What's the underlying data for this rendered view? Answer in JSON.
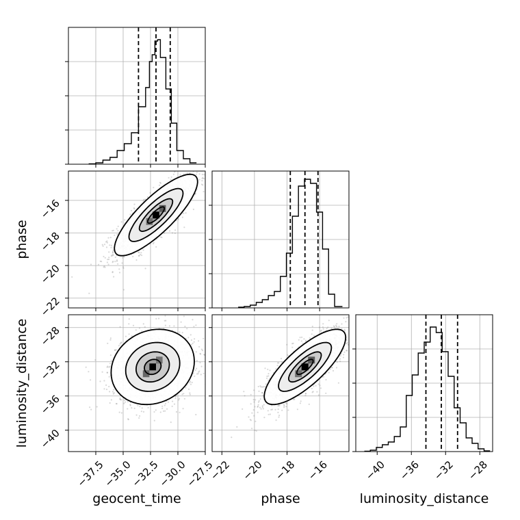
{
  "chart_data": {
    "type": "corner",
    "grid": true,
    "colors": {
      "line": "#000000",
      "grid": "#b0b0b0",
      "samples": "#7f7f7f",
      "quantile": "#000000"
    },
    "parameters": [
      {
        "name": "geocent_time",
        "label": "geocent_time",
        "range": [
          -40.0,
          -27.5
        ],
        "ticks": [
          -37.5,
          -35.0,
          -32.5,
          -30.0,
          -27.5
        ],
        "tick_labels": [
          "−37.5",
          "−35.0",
          "−32.5",
          "−30.0",
          "−27.5"
        ],
        "quantiles": [
          -33.6,
          -32.0,
          -30.7
        ]
      },
      {
        "name": "phase",
        "label": "phase",
        "range": [
          -22.6,
          -14.2
        ],
        "ticks": [
          -22,
          -20,
          -18,
          -16
        ],
        "tick_labels": [
          "−22",
          "−20",
          "−18",
          "−16"
        ],
        "quantiles": [
          -17.8,
          -16.9,
          -16.1
        ]
      },
      {
        "name": "luminosity_distance",
        "label": "luminosity_distance",
        "range": [
          -42.5,
          -26.5
        ],
        "ticks": [
          -40,
          -36,
          -32,
          -28
        ],
        "tick_labels": [
          "−40",
          "−36",
          "−32",
          "−28"
        ],
        "quantiles": [
          -34.3,
          -32.5,
          -30.6
        ]
      }
    ],
    "histograms": [
      {
        "param": "geocent_time",
        "edges": [
          -38.15,
          -37.5,
          -36.85,
          -36.2,
          -35.55,
          -34.9,
          -34.25,
          -33.6,
          -32.95,
          -32.6,
          -32.35,
          -32.1,
          -31.85,
          -31.6,
          -31.1,
          -30.6,
          -30.1,
          -29.5,
          -28.9,
          -28.3
        ],
        "counts": [
          0.003,
          0.01,
          0.03,
          0.05,
          0.1,
          0.15,
          0.23,
          0.42,
          0.56,
          0.75,
          0.8,
          0.9,
          0.91,
          0.78,
          0.55,
          0.3,
          0.1,
          0.04,
          0.01
        ]
      },
      {
        "param": "phase",
        "edges": [
          -21.0,
          -20.63,
          -20.26,
          -19.89,
          -19.52,
          -19.15,
          -18.78,
          -18.41,
          -18.04,
          -17.67,
          -17.3,
          -16.93,
          -16.56,
          -16.19,
          -15.82,
          -15.45,
          -15.08,
          -14.6
        ],
        "counts": [
          0.005,
          0.01,
          0.02,
          0.04,
          0.06,
          0.09,
          0.12,
          0.23,
          0.4,
          0.67,
          0.89,
          0.94,
          0.91,
          0.7,
          0.43,
          0.1,
          0.01
        ]
      },
      {
        "param": "luminosity_distance",
        "edges": [
          -41.5,
          -40.8,
          -40.1,
          -39.4,
          -38.7,
          -38.0,
          -37.3,
          -36.6,
          -35.9,
          -35.2,
          -34.5,
          -33.8,
          -33.1,
          -32.4,
          -31.7,
          -31.0,
          -30.3,
          -29.6,
          -28.9,
          -28.2,
          -27.5,
          -26.8
        ],
        "counts": [
          0.003,
          0.01,
          0.03,
          0.05,
          0.07,
          0.11,
          0.18,
          0.41,
          0.56,
          0.72,
          0.8,
          0.91,
          0.87,
          0.73,
          0.55,
          0.32,
          0.21,
          0.1,
          0.06,
          0.02,
          0.005
        ]
      }
    ],
    "pairs": [
      {
        "x": "geocent_time",
        "y": "phase",
        "center": [
          -32.0,
          -16.9
        ],
        "sigma": [
          1.9,
          1.25
        ],
        "rho": 0.82,
        "contour_levels": [
          0.4,
          0.8,
          1.3,
          2.0
        ],
        "peak_cells": [
          {
            "x": -32.0,
            "y": -16.9,
            "w": 0.6,
            "h": 0.42,
            "shade": 1.0
          },
          {
            "x": -31.4,
            "y": -16.5,
            "w": 0.6,
            "h": 0.42,
            "shade": 0.55
          },
          {
            "x": -32.6,
            "y": -17.3,
            "w": 0.6,
            "h": 0.42,
            "shade": 0.45
          }
        ]
      },
      {
        "x": "geocent_time",
        "y": "luminosity_distance",
        "center": [
          -32.3,
          -32.6
        ],
        "sigma": [
          1.9,
          2.2
        ],
        "rho": 0.15,
        "contour_levels": [
          0.4,
          0.8,
          1.3,
          2.0
        ],
        "peak_cells": [
          {
            "x": -32.3,
            "y": -32.6,
            "w": 0.6,
            "h": 0.8,
            "shade": 1.0
          },
          {
            "x": -32.9,
            "y": -33.4,
            "w": 0.6,
            "h": 0.8,
            "shade": 0.5
          },
          {
            "x": -31.7,
            "y": -31.8,
            "w": 0.6,
            "h": 0.8,
            "shade": 0.45
          }
        ]
      },
      {
        "x": "phase",
        "y": "luminosity_distance",
        "center": [
          -16.9,
          -32.6
        ],
        "sigma": [
          1.25,
          2.2
        ],
        "rho": 0.78,
        "contour_levels": [
          0.4,
          0.8,
          1.3,
          2.0
        ],
        "peak_cells": [
          {
            "x": -16.9,
            "y": -32.6,
            "w": 0.42,
            "h": 0.8,
            "shade": 1.0
          },
          {
            "x": -16.5,
            "y": -31.8,
            "w": 0.42,
            "h": 0.8,
            "shade": 0.55
          },
          {
            "x": -17.3,
            "y": -33.4,
            "w": 0.42,
            "h": 0.8,
            "shade": 0.45
          }
        ]
      }
    ]
  }
}
